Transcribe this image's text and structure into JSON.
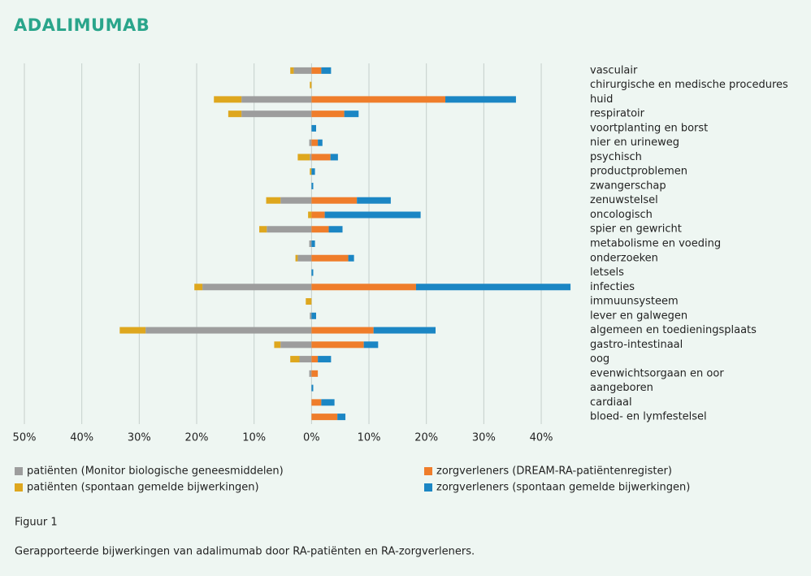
{
  "chart_data": {
    "type": "bar",
    "orientation": "horizontal",
    "stacked": true,
    "title": "ADALIMUMAB",
    "categories": [
      "vasculair",
      "chirurgische en medische procedures",
      "huid",
      "respiratoir",
      "voortplanting en borst",
      "nier en urineweg",
      "psychisch",
      "productproblemen",
      "zwangerschap",
      "zenuwstelsel",
      "oncologisch",
      "spier en gewricht",
      "metabolisme en voeding",
      "onderzoeken",
      "letsels",
      "infecties",
      "immuunsysteem",
      "lever en galwegen",
      "algemeen en toedieningsplaats",
      "gastro-intestinaal",
      "oog",
      "evenwichtsorgaan en oor",
      "aangeboren",
      "cardiaal",
      "bloed- en lymfestelsel"
    ],
    "series": [
      {
        "name": "patiënten (Monitor biologische geneesmiddelen)",
        "color": "#9d9d9d",
        "values": [
          -3.1,
          0,
          -12.2,
          -12.2,
          0,
          -0.4,
          -0.3,
          0,
          0,
          -5.4,
          0,
          -7.8,
          -0.4,
          -2.4,
          0,
          -19.0,
          0,
          -0.3,
          -28.9,
          -5.4,
          -2.1,
          -0.4,
          0,
          0,
          0
        ]
      },
      {
        "name": "patiënten (spontaan gemelde bijwerkingen)",
        "color": "#dea71e",
        "values": [
          -0.6,
          -0.3,
          -4.8,
          -2.3,
          0,
          0,
          -2.1,
          -0.3,
          0,
          -2.5,
          -0.6,
          -1.3,
          0,
          -0.4,
          0,
          -1.4,
          -1.0,
          0,
          -4.5,
          -1.1,
          -1.6,
          0,
          0,
          0,
          0
        ]
      },
      {
        "name": "zorgverleners (DREAM-RA-patiëntenregister)",
        "color": "#ef7d2b",
        "values": [
          1.7,
          0,
          23.3,
          5.7,
          0,
          1.1,
          3.3,
          0,
          0,
          7.9,
          2.3,
          3.0,
          0,
          6.4,
          0,
          18.2,
          0,
          0,
          10.8,
          9.1,
          1.1,
          1.1,
          0,
          1.7,
          4.5
        ]
      },
      {
        "name": "zorgverleners (spontaan gemelde bijwerkingen)",
        "color": "#1b86c4",
        "values": [
          1.7,
          0,
          12.3,
          2.5,
          0.8,
          0.8,
          1.3,
          0.6,
          0.3,
          5.9,
          16.7,
          2.4,
          0.6,
          1.0,
          0.3,
          26.9,
          0,
          0.8,
          10.8,
          2.5,
          2.3,
          0,
          0.3,
          2.3,
          1.4
        ]
      }
    ],
    "xlim": [
      -50,
      45
    ],
    "xticks": [
      {
        "value": -50,
        "label": "50%"
      },
      {
        "value": -40,
        "label": "40%"
      },
      {
        "value": -30,
        "label": "30%"
      },
      {
        "value": -20,
        "label": "20%"
      },
      {
        "value": -10,
        "label": "10%"
      },
      {
        "value": 0,
        "label": "0%"
      },
      {
        "value": 10,
        "label": "10%"
      },
      {
        "value": 20,
        "label": "20%"
      },
      {
        "value": 30,
        "label": "30%"
      },
      {
        "value": 40,
        "label": "40%"
      }
    ],
    "grid": true
  },
  "figure": {
    "label": "Figuur 1",
    "caption": "Gerapporteerde bijwerkingen van adalimumab door RA-patiënten en RA-zorgverleners."
  }
}
